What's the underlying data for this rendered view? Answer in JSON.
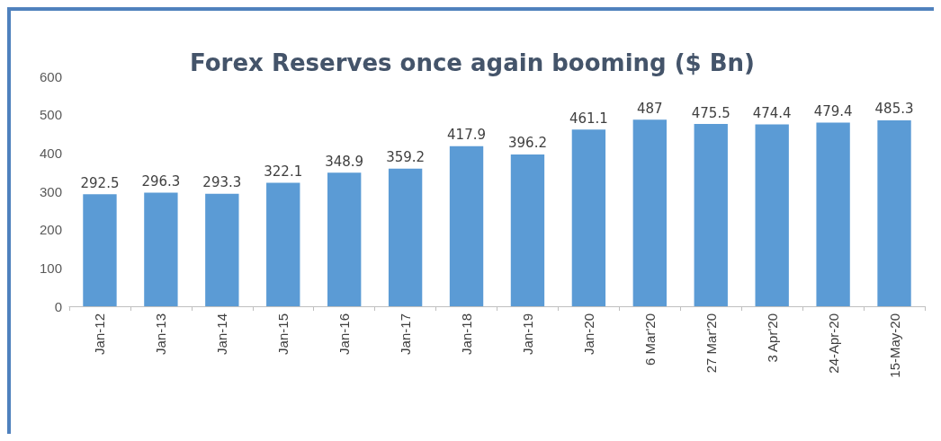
{
  "chart_data": {
    "type": "bar",
    "title": "Forex Reserves once again booming ($ Bn)",
    "categories": [
      "Jan-12",
      "Jan-13",
      "Jan-14",
      "Jan-15",
      "Jan-16",
      "Jan-17",
      "Jan-18",
      "Jan-19",
      "Jan-20",
      "6 Mar'20",
      "27 Mar'20",
      "3 Apr'20",
      "24-Apr-20",
      "15-May-20"
    ],
    "values": [
      292.5,
      296.3,
      293.3,
      322.1,
      348.9,
      359.2,
      417.9,
      396.2,
      461.1,
      487,
      475.5,
      474.4,
      479.4,
      485.3
    ],
    "color": "#5b9bd5",
    "ylim": [
      0,
      600
    ],
    "yticks": [
      0,
      100,
      200,
      300,
      400,
      500,
      600
    ],
    "grid": false,
    "data_labels": true
  }
}
